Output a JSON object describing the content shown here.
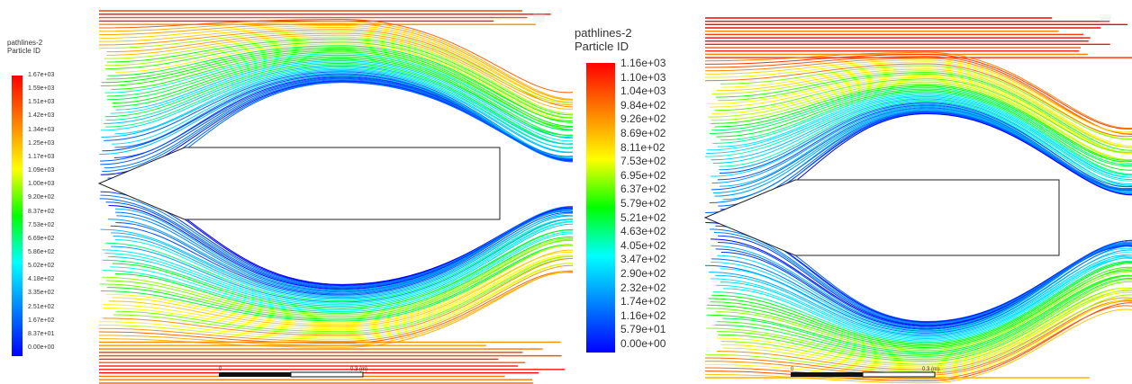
{
  "panels": [
    {
      "id": "left",
      "legend_title": [
        "pathlines-2",
        "Particle ID"
      ],
      "ticks": [
        "1.67e+03",
        "1.59e+03",
        "1.51e+03",
        "1.42e+03",
        "1.34e+03",
        "1.25e+03",
        "1.17e+03",
        "1.09e+03",
        "1.00e+03",
        "9.20e+02",
        "8.37e+02",
        "7.53e+02",
        "6.69e+02",
        "5.86e+02",
        "5.02e+02",
        "4.18e+02",
        "3.35e+02",
        "2.51e+02",
        "1.67e+02",
        "8.37e+01",
        "0.00e+00"
      ],
      "scale_start": "0",
      "scale_end": "0.3 (m)"
    },
    {
      "id": "right",
      "legend_title": [
        "pathlines-2",
        "Particle ID"
      ],
      "ticks": [
        "1.16e+03",
        "1.10e+03",
        "1.04e+03",
        "9.84e+02",
        "9.26e+02",
        "8.69e+02",
        "8.11e+02",
        "7.53e+02",
        "6.95e+02",
        "6.37e+02",
        "5.79e+02",
        "5.21e+02",
        "4.63e+02",
        "4.05e+02",
        "3.47e+02",
        "2.90e+02",
        "2.32e+02",
        "1.74e+02",
        "1.16e+02",
        "5.79e+01",
        "0.00e+00"
      ],
      "scale_start": "0",
      "scale_end": "0.3 (m)"
    }
  ],
  "colormap": [
    "#ff0000",
    "#ff8000",
    "#ffff00",
    "#00ff00",
    "#00ffff",
    "#0080ff",
    "#0000ff"
  ]
}
